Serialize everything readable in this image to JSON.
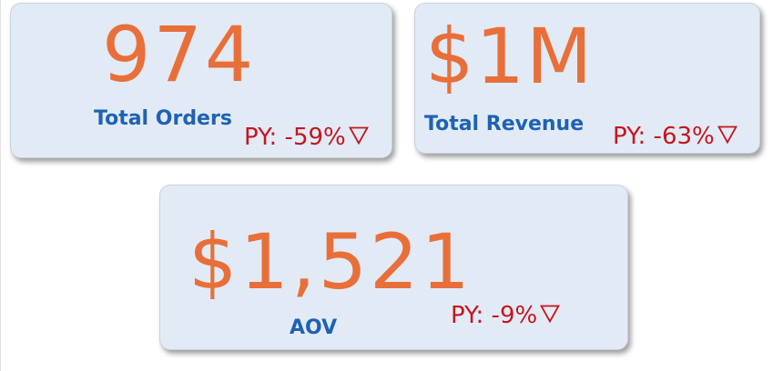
{
  "cards": {
    "total_orders": {
      "value": "974",
      "label": "Total Orders",
      "py_text": "PY: -59%",
      "trend": "down"
    },
    "total_revenue": {
      "value": "$1M",
      "label": "Total Revenue",
      "py_text": "PY: -63%",
      "trend": "down"
    },
    "aov": {
      "value": "$1,521",
      "label": "AOV",
      "py_text": "PY: -9%",
      "trend": "down"
    }
  },
  "colors": {
    "card_background": "#e2ebf5",
    "value_color": "#e96f3a",
    "label_color": "#1f62b3",
    "negative_delta_color": "#c6141e"
  },
  "icons": {
    "trend_down": "triangle-down-outline-icon"
  }
}
